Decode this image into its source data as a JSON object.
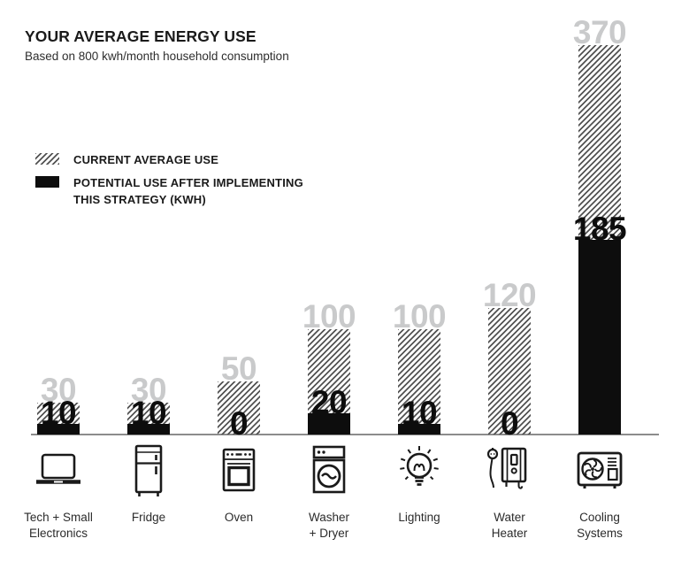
{
  "chart_data": {
    "type": "bar",
    "title": "YOUR AVERAGE ENERGY USE",
    "subtitle": "Based on 800 kwh/month household consumption",
    "categories": [
      "Tech + Small\nElectronics",
      "Fridge",
      "Oven",
      "Washer\n+ Dryer",
      "Lighting",
      "Water\nHeater",
      "Cooling\nSystems"
    ],
    "series": [
      {
        "name": "CURRENT AVERAGE USE",
        "style": "diagonal-hatch",
        "values": [
          30,
          30,
          50,
          100,
          100,
          120,
          370
        ]
      },
      {
        "name": "POTENTIAL USE AFTER IMPLEMENTING THIS STRATEGY (KWH)",
        "style": "solid-black",
        "values": [
          10,
          10,
          0,
          20,
          10,
          0,
          185
        ]
      }
    ],
    "unit": "kwh",
    "ylim": [
      0,
      370
    ],
    "grid": false,
    "value_labels": "above-bars",
    "legend_position": "upper-left",
    "icons": [
      "laptop-icon",
      "fridge-icon",
      "oven-icon",
      "washing-machine-icon",
      "lightbulb-icon",
      "water-heater-icon",
      "air-conditioner-icon"
    ]
  },
  "colors": {
    "background": "#ffffff",
    "text": "#1a1a1a",
    "current_bar_hatch": "#4d4d4d",
    "current_value_label": "#c9cacb",
    "potential_bar": "#0d0d0d",
    "axis_line": "#8c8c8c"
  }
}
